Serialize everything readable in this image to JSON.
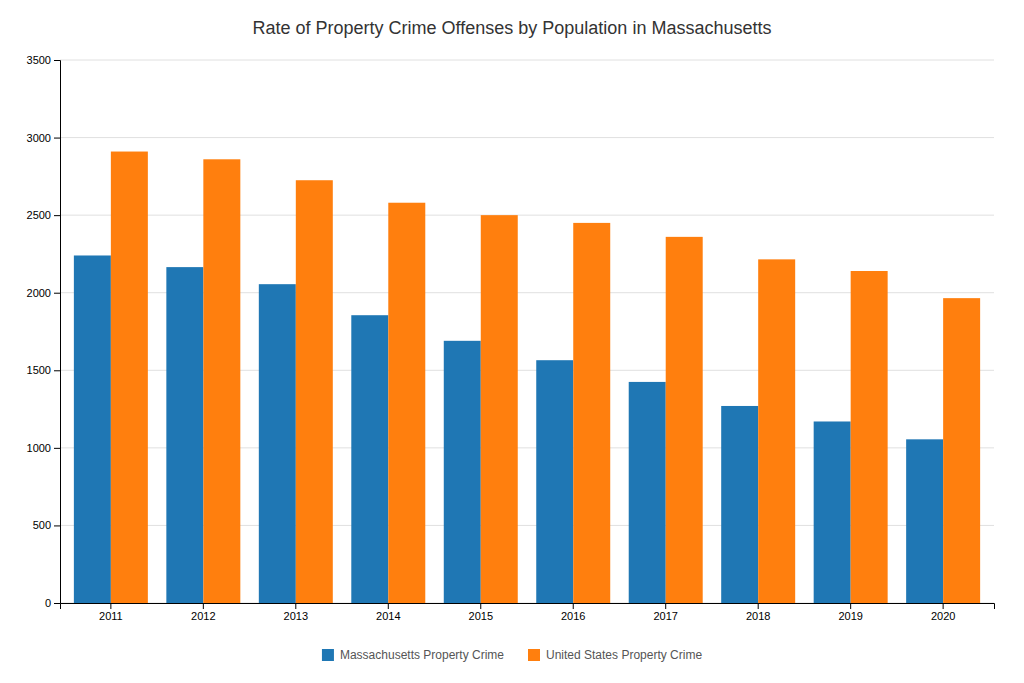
{
  "chart_data": {
    "type": "bar",
    "title": "Rate of Property Crime Offenses by Population in Massachusetts",
    "categories": [
      "2011",
      "2012",
      "2013",
      "2014",
      "2015",
      "2016",
      "2017",
      "2018",
      "2019",
      "2020"
    ],
    "series": [
      {
        "name": "Massachusetts Property Crime",
        "values": [
          2240,
          2165,
          2055,
          1855,
          1690,
          1565,
          1425,
          1270,
          1170,
          1055
        ]
      },
      {
        "name": "United States Property Crime",
        "values": [
          2910,
          2860,
          2725,
          2580,
          2500,
          2450,
          2360,
          2215,
          2140,
          1965
        ]
      }
    ],
    "ylim": [
      0,
      3500
    ],
    "yticks": [
      0,
      500,
      1000,
      1500,
      2000,
      2500,
      3000,
      3500
    ],
    "grid": true,
    "legend": "bottom"
  }
}
